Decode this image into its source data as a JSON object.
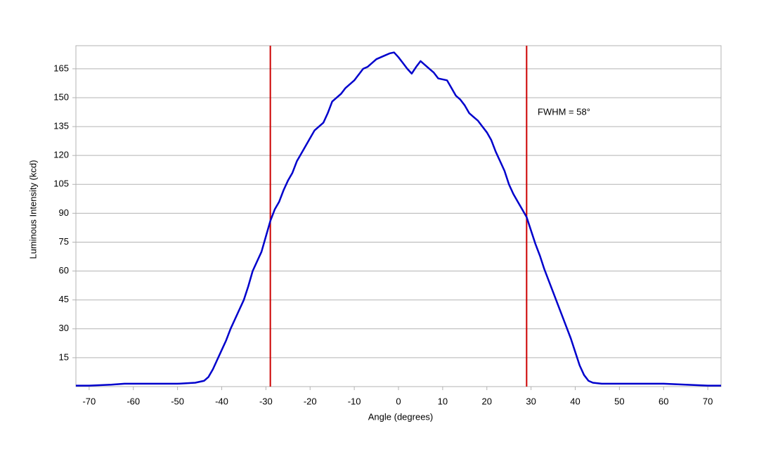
{
  "chart_data": {
    "type": "line",
    "x_label": "Angle (degrees)",
    "y_label": "Luminous Intensity (kcd)",
    "annotation": "FWHM = 58°",
    "x": [
      -73,
      -70,
      -65,
      -62,
      -60,
      -55,
      -50,
      -46,
      -44,
      -43,
      -42,
      -41,
      -40,
      -39,
      -38,
      -37,
      -36,
      -35,
      -34,
      -33,
      -32,
      -31,
      -30,
      -29,
      -28,
      -27,
      -26,
      -25,
      -24,
      -23,
      -22,
      -21,
      -20,
      -19,
      -18,
      -17,
      -16,
      -15,
      -14,
      -13,
      -12,
      -11,
      -10,
      -9,
      -8,
      -7,
      -6,
      -5,
      -4,
      -3,
      -2,
      -1,
      0,
      1,
      2,
      3,
      4,
      5,
      6,
      7,
      8,
      9,
      10,
      11,
      12,
      13,
      14,
      15,
      16,
      17,
      18,
      19,
      20,
      21,
      22,
      23,
      24,
      25,
      26,
      27,
      28,
      29,
      30,
      31,
      32,
      33,
      34,
      35,
      36,
      37,
      38,
      39,
      40,
      41,
      42,
      43,
      44,
      46,
      50,
      55,
      60,
      65,
      70,
      73
    ],
    "series": [
      {
        "color": "#0000cc",
        "values": [
          0.5,
          0.5,
          1,
          1.5,
          1.5,
          1.5,
          1.5,
          2,
          3,
          5,
          9,
          14,
          19,
          24,
          30,
          35,
          40,
          45,
          52,
          60,
          65,
          70,
          78,
          86,
          92,
          96,
          102,
          107,
          111,
          117,
          121,
          125,
          129,
          133,
          135,
          137,
          142,
          148,
          150,
          152,
          155,
          157,
          159,
          162,
          165,
          166,
          168,
          170,
          171,
          172,
          173,
          173.5,
          171,
          168,
          165,
          162.5,
          166,
          169,
          167,
          165,
          163,
          160,
          159.5,
          159,
          155,
          151,
          149,
          146,
          142,
          140,
          138,
          135,
          132,
          128,
          122,
          117,
          112,
          105,
          100,
          96,
          92,
          88,
          81,
          74,
          68,
          61,
          55,
          49,
          43,
          37,
          31,
          25,
          18,
          11,
          6,
          3,
          2,
          1.5,
          1.5,
          1.5,
          1.5,
          1,
          0.5,
          0.5
        ]
      }
    ],
    "vlines": [
      -29,
      29
    ],
    "vline_color": "#cc0000",
    "xlim": [
      -73,
      73
    ],
    "ylim": [
      0,
      177
    ],
    "xticks": [
      -70,
      -60,
      -50,
      -40,
      -30,
      -20,
      -10,
      0,
      10,
      20,
      30,
      40,
      50,
      60,
      70
    ],
    "yticks": [
      15,
      30,
      45,
      60,
      75,
      90,
      105,
      120,
      135,
      150,
      165
    ],
    "grid": true
  }
}
